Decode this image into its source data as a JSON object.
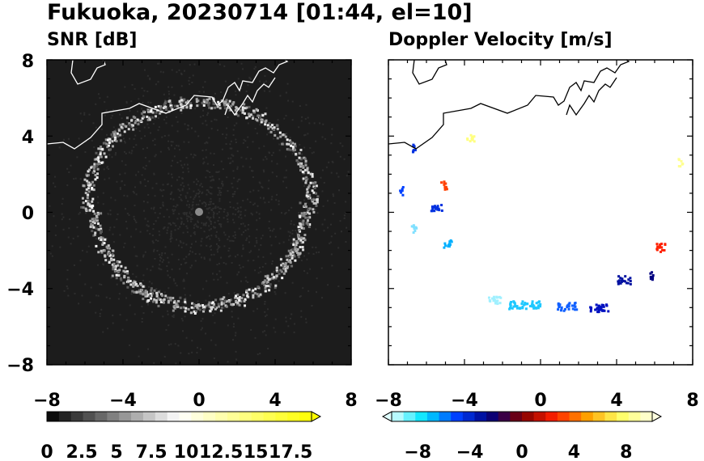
{
  "title": "Fukuoka, 20230714 [01:44, el=10]",
  "chart_data": [
    {
      "type": "heatmap",
      "title": "SNR [dB]",
      "xlim": [
        -8,
        8
      ],
      "ylim": [
        -8,
        8
      ],
      "x_ticks": [
        "−8",
        "−4",
        "0",
        "4",
        "8"
      ],
      "y_ticks": [
        "8",
        "4",
        "0",
        "−4",
        "−8"
      ],
      "background": "black",
      "colorbar": {
        "range": [
          0,
          19
        ],
        "extend": "max",
        "tick_labels": [
          "0",
          "2.5",
          "5",
          "7.5",
          "10",
          "12.5",
          "15",
          "17.5"
        ],
        "tick_values": [
          0,
          2.5,
          5,
          7.5,
          10,
          12.5,
          15,
          17.5
        ],
        "colors": [
          "#000000",
          "#ffffff",
          "#ffff00"
        ]
      }
    },
    {
      "type": "heatmap",
      "title": "Doppler Velocity [m/s]",
      "xlim": [
        -8,
        8
      ],
      "ylim": [
        -8,
        8
      ],
      "x_ticks": [
        "−8",
        "−4",
        "0",
        "4",
        "8"
      ],
      "y_ticks": [],
      "background": "white",
      "colorbar": {
        "range": [
          -10,
          10
        ],
        "extend": "both",
        "tick_labels": [
          "−8",
          "−4",
          "0",
          "4",
          "8"
        ],
        "tick_values": [
          -8,
          -4,
          0,
          4,
          8
        ],
        "colors": [
          "#e0ffff",
          "#00e5ff",
          "#0040ff",
          "#000080",
          "#800000",
          "#ff2000",
          "#ffa000",
          "#ffff60",
          "#ffffe0"
        ]
      }
    }
  ]
}
